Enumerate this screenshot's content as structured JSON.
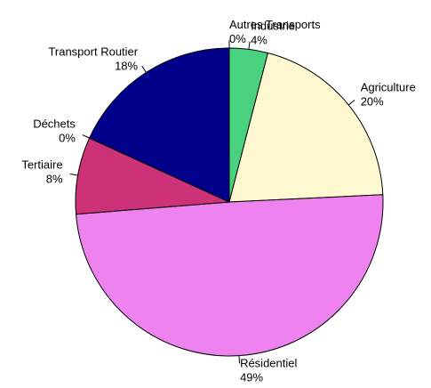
{
  "chart_data": {
    "type": "pie",
    "categories": [
      "Autres Transports",
      "Industrie",
      "Agriculture",
      "Résidentiel",
      "Tertiaire",
      "Déchets",
      "Transport Routier"
    ],
    "values": [
      0,
      4,
      20,
      49,
      8,
      0,
      18
    ],
    "value_labels": [
      "0%",
      "4%",
      "20%",
      "49%",
      "8%",
      "0%",
      "18%"
    ],
    "colors": [
      "#87cefa",
      "#48d17e",
      "#fff8d0",
      "#ee82ee",
      "#cd3278",
      "#8b4513",
      "#00008b"
    ]
  }
}
